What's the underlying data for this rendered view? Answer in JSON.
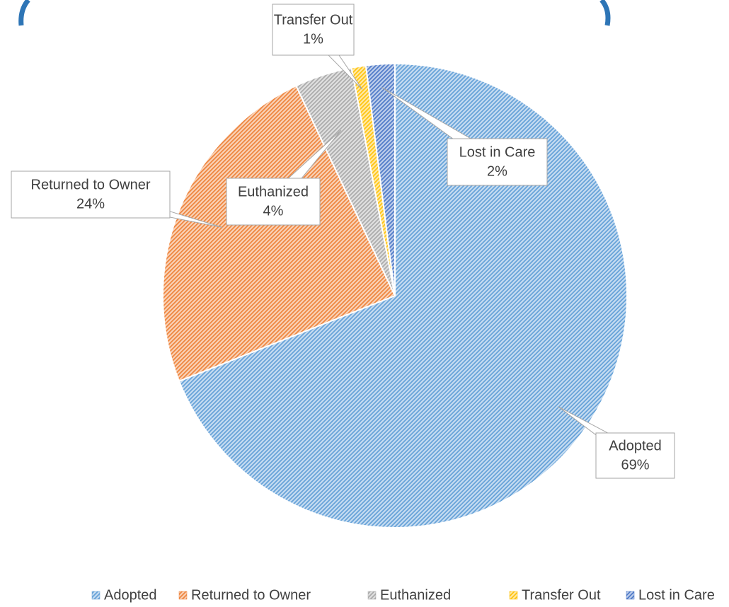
{
  "chart_data": {
    "type": "pie",
    "categories": [
      "Adopted",
      "Returned to Owner",
      "Euthanized",
      "Transfer Out",
      "Lost in Care"
    ],
    "values": [
      69,
      24,
      4,
      1,
      2
    ],
    "value_labels": [
      "69%",
      "24%",
      "4%",
      "1%",
      "2%"
    ],
    "colors": [
      "#5b9bd5",
      "#ed7d31",
      "#a5a5a5",
      "#ffc000",
      "#4472c4"
    ],
    "legend": "bottom"
  }
}
